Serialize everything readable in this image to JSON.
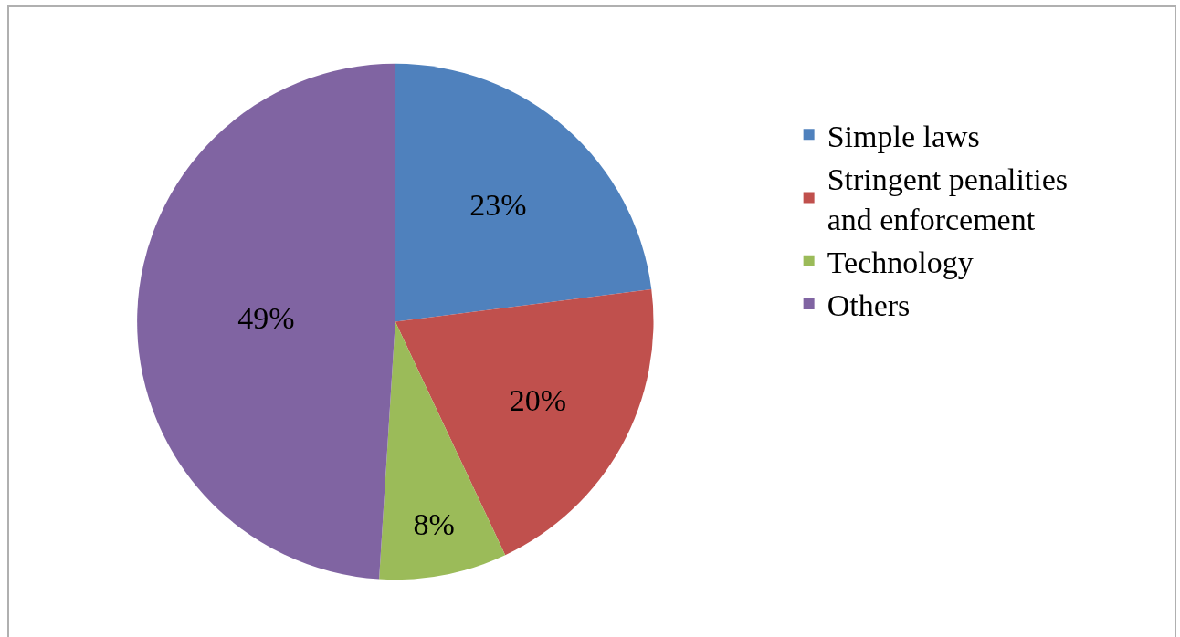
{
  "chart_data": {
    "type": "pie",
    "categories": [
      "Simple laws",
      "Stringent penalities and enforcement",
      "Technology",
      "Others"
    ],
    "values": [
      23,
      20,
      8,
      49
    ],
    "value_labels": [
      "23%",
      "20%",
      "8%",
      "49%"
    ],
    "colors": [
      "#4f81bd",
      "#c0504d",
      "#9bbb59",
      "#8064a2"
    ],
    "legend": "right"
  }
}
